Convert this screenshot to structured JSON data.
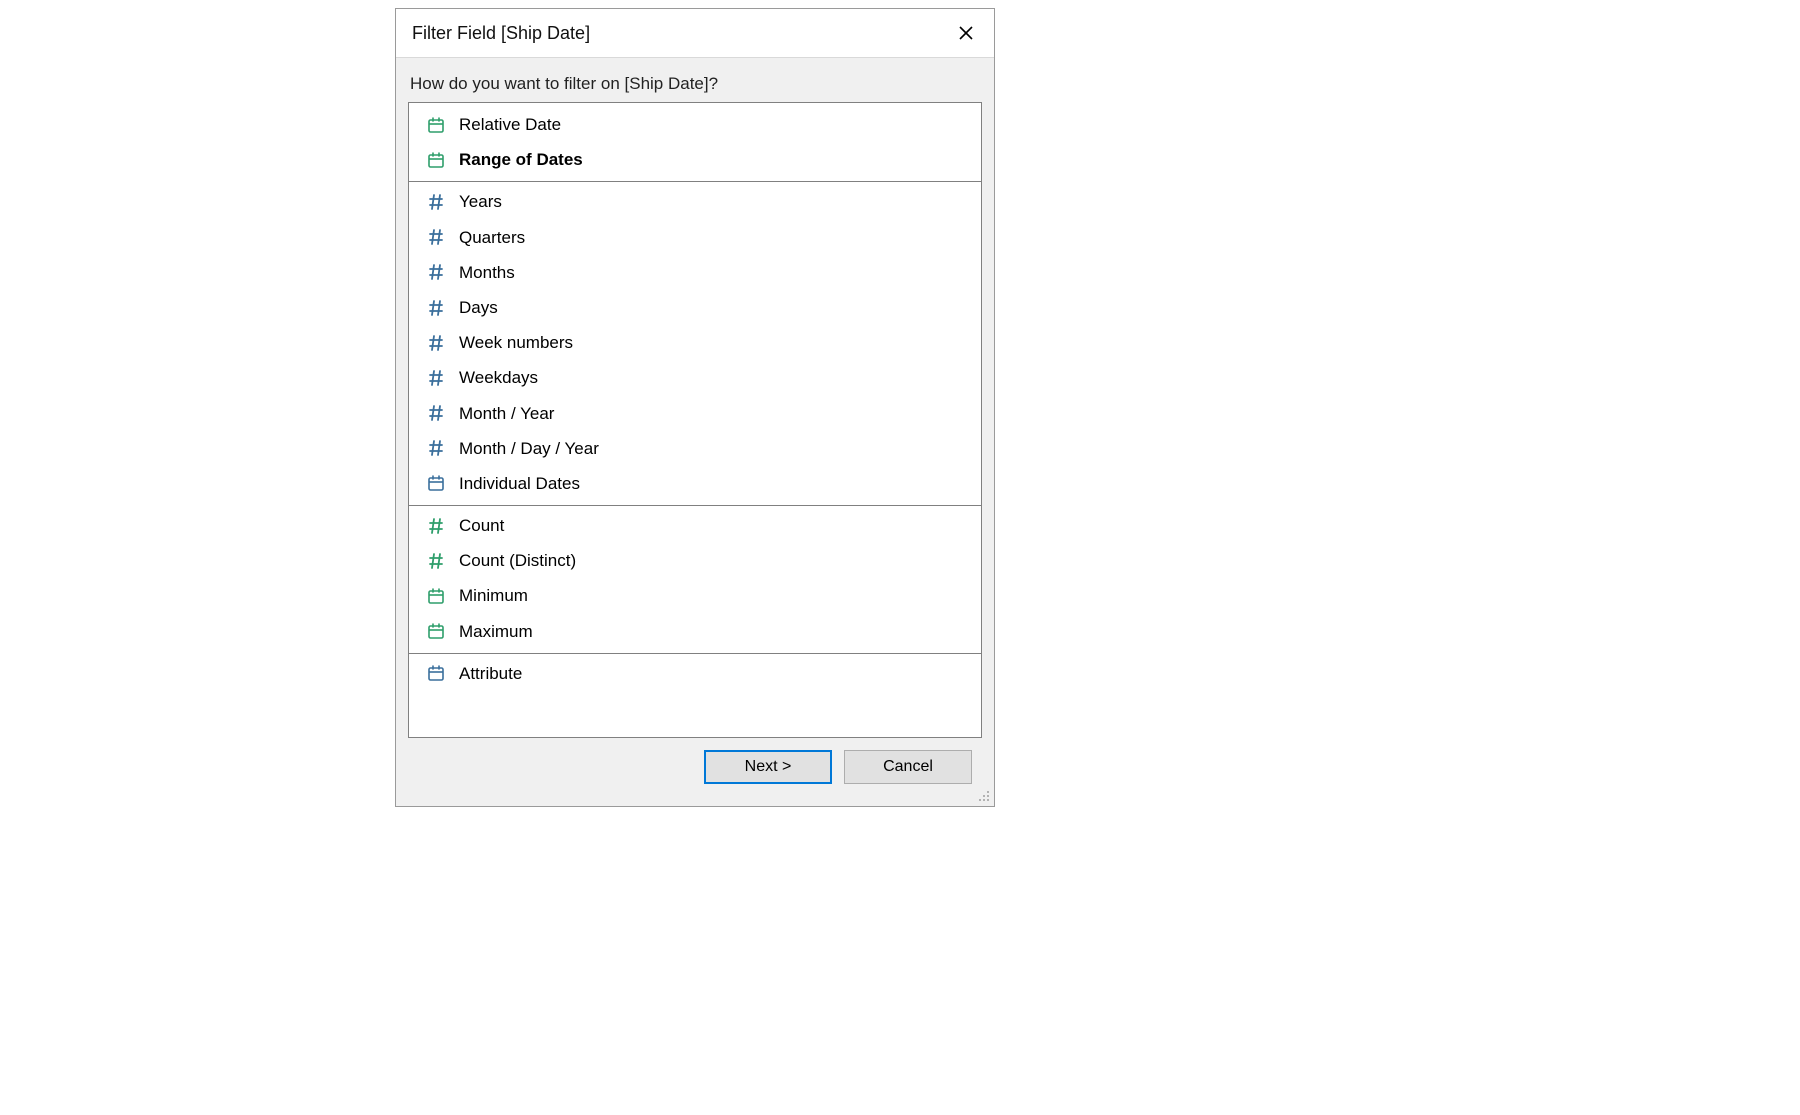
{
  "colors": {
    "dialog_border": "#9a9a9a",
    "body_bg": "#f0f0f0",
    "listbox_border": "#808080",
    "divider": "#808080",
    "btn_bg": "#e1e1e1",
    "btn_border": "#adadad",
    "primary_border": "#0078d7",
    "title_text": "#111111",
    "icon_green": "#2e9e6b",
    "icon_blue": "#3a6f9c",
    "icon_blue_cal": "#3a6f9c"
  },
  "dialog": {
    "title": "Filter Field [Ship Date]",
    "prompt": "How do you want to filter on [Ship Date]?",
    "buttons": {
      "next": "Next >",
      "cancel": "Cancel"
    }
  },
  "groups": [
    {
      "items": [
        {
          "label": "Relative Date",
          "icon": "calendar",
          "icon_color": "#2e9e6b",
          "selected": false
        },
        {
          "label": "Range of Dates",
          "icon": "calendar",
          "icon_color": "#2e9e6b",
          "selected": true
        }
      ]
    },
    {
      "items": [
        {
          "label": "Years",
          "icon": "hash",
          "icon_color": "#3a6f9c"
        },
        {
          "label": "Quarters",
          "icon": "hash",
          "icon_color": "#3a6f9c"
        },
        {
          "label": "Months",
          "icon": "hash",
          "icon_color": "#3a6f9c"
        },
        {
          "label": "Days",
          "icon": "hash",
          "icon_color": "#3a6f9c"
        },
        {
          "label": "Week numbers",
          "icon": "hash",
          "icon_color": "#3a6f9c"
        },
        {
          "label": "Weekdays",
          "icon": "hash",
          "icon_color": "#3a6f9c"
        },
        {
          "label": "Month / Year",
          "icon": "hash",
          "icon_color": "#3a6f9c"
        },
        {
          "label": "Month / Day / Year",
          "icon": "hash",
          "icon_color": "#3a6f9c"
        },
        {
          "label": "Individual Dates",
          "icon": "calendar",
          "icon_color": "#3a6f9c"
        }
      ]
    },
    {
      "items": [
        {
          "label": "Count",
          "icon": "hash",
          "icon_color": "#2e9e6b"
        },
        {
          "label": "Count (Distinct)",
          "icon": "hash",
          "icon_color": "#2e9e6b"
        },
        {
          "label": "Minimum",
          "icon": "calendar",
          "icon_color": "#2e9e6b"
        },
        {
          "label": "Maximum",
          "icon": "calendar",
          "icon_color": "#2e9e6b"
        }
      ]
    },
    {
      "items": [
        {
          "label": "Attribute",
          "icon": "calendar",
          "icon_color": "#3a6f9c"
        }
      ]
    }
  ]
}
